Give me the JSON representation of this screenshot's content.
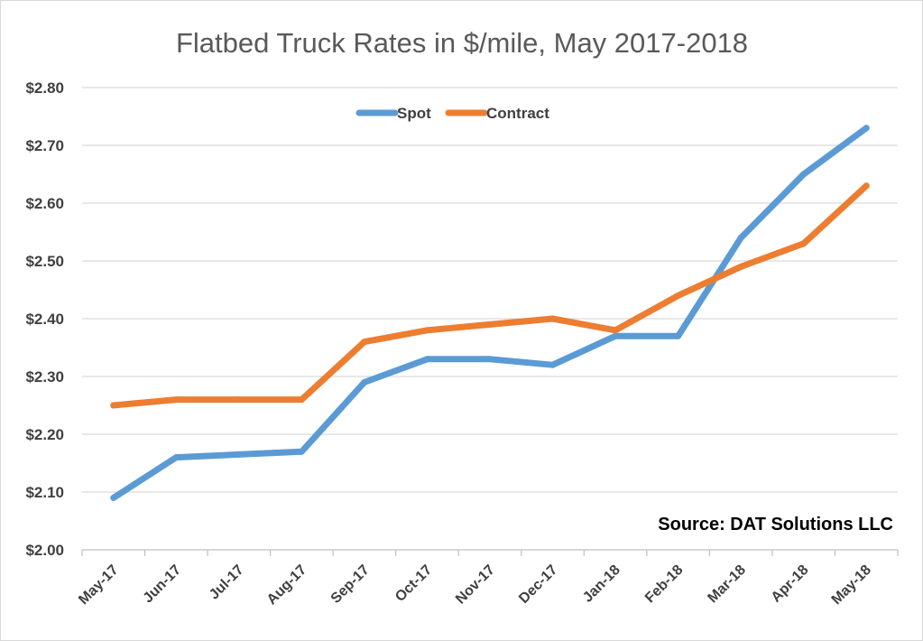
{
  "chart_data": {
    "type": "line",
    "title": "Flatbed Truck Rates in $/mile, May 2017-2018",
    "xlabel": "",
    "ylabel": "",
    "categories": [
      "May-17",
      "Jun-17",
      "Jul-17",
      "Aug-17",
      "Sep-17",
      "Oct-17",
      "Nov-17",
      "Dec-17",
      "Jan-18",
      "Feb-18",
      "Mar-18",
      "Apr-18",
      "May-18"
    ],
    "yticks": [
      "$2.00",
      "$2.10",
      "$2.20",
      "$2.30",
      "$2.40",
      "$2.50",
      "$2.60",
      "$2.70",
      "$2.80"
    ],
    "ylim": [
      2.0,
      2.8
    ],
    "grid": true,
    "legend_position": "top-center",
    "annotation": "Source: DAT Solutions LLC",
    "series": [
      {
        "name": "Spot",
        "color": "#5b9bd5",
        "values": [
          2.09,
          2.16,
          2.165,
          2.17,
          2.29,
          2.33,
          2.33,
          2.32,
          2.37,
          2.37,
          2.54,
          2.65,
          2.73
        ]
      },
      {
        "name": "Contract",
        "color": "#ed7d31",
        "values": [
          2.25,
          2.26,
          2.26,
          2.26,
          2.36,
          2.38,
          2.39,
          2.4,
          2.38,
          2.44,
          2.49,
          2.53,
          2.63
        ]
      }
    ]
  }
}
